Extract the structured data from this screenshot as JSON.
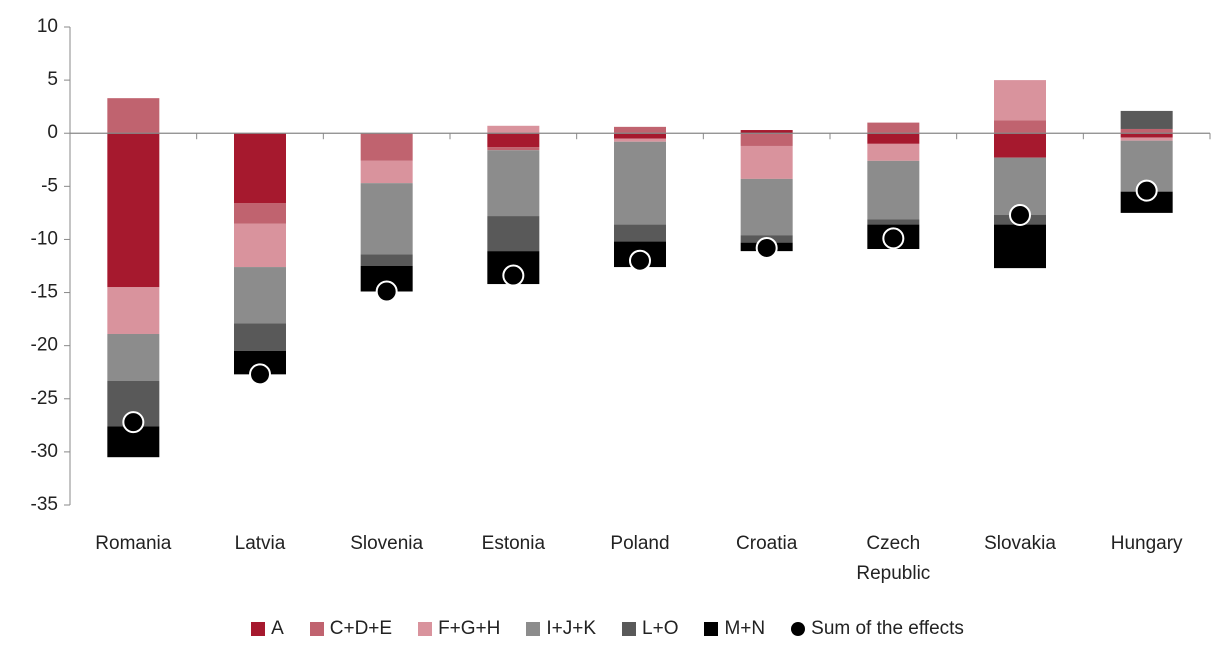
{
  "chart_data": {
    "type": "stacked_bar",
    "categories": [
      "Romania",
      "Latvia",
      "Slovenia",
      "Estonia",
      "Poland",
      "Croatia",
      "Czech Republic",
      "Slovakia",
      "Hungary"
    ],
    "series": [
      {
        "name": "A",
        "color": "#a6192e",
        "values": [
          -14.5,
          -6.6,
          0,
          -1.3,
          -0.5,
          0.3,
          -1.0,
          -2.3,
          -0.4
        ]
      },
      {
        "name": "C+D+E",
        "color": "#c0636f",
        "values": [
          3.3,
          -1.9,
          -2.6,
          -0.3,
          0.6,
          -1.2,
          1.0,
          1.2,
          0.4
        ]
      },
      {
        "name": "F+G+H",
        "color": "#d9939d",
        "values": [
          -4.4,
          -4.1,
          -2.1,
          0.7,
          -0.3,
          -3.1,
          -1.6,
          3.8,
          -0.3
        ]
      },
      {
        "name": "I+J+K",
        "color": "#8c8c8c",
        "values": [
          -4.4,
          -5.3,
          -6.7,
          -6.2,
          -7.8,
          -5.3,
          -5.5,
          -5.4,
          -4.8
        ]
      },
      {
        "name": "L+O",
        "color": "#595959",
        "values": [
          -4.3,
          -2.6,
          -1.1,
          -3.3,
          -1.6,
          -0.7,
          -0.5,
          -0.9,
          1.7
        ]
      },
      {
        "name": "M+N",
        "color": "#000000",
        "values": [
          -2.9,
          -2.2,
          -2.4,
          -3.1,
          -2.4,
          -0.8,
          -2.3,
          -4.1,
          -2.0
        ]
      }
    ],
    "sum_series": {
      "name": "Sum of the effects",
      "color": "#000000",
      "values": [
        -27.2,
        -22.7,
        -14.9,
        -13.4,
        -12.0,
        -10.8,
        -9.9,
        -7.7,
        -5.4
      ]
    },
    "ylim": [
      -35,
      10
    ],
    "yticks": [
      -35,
      -30,
      -25,
      -20,
      -15,
      -10,
      -5,
      0,
      5,
      10
    ],
    "grid": false
  }
}
